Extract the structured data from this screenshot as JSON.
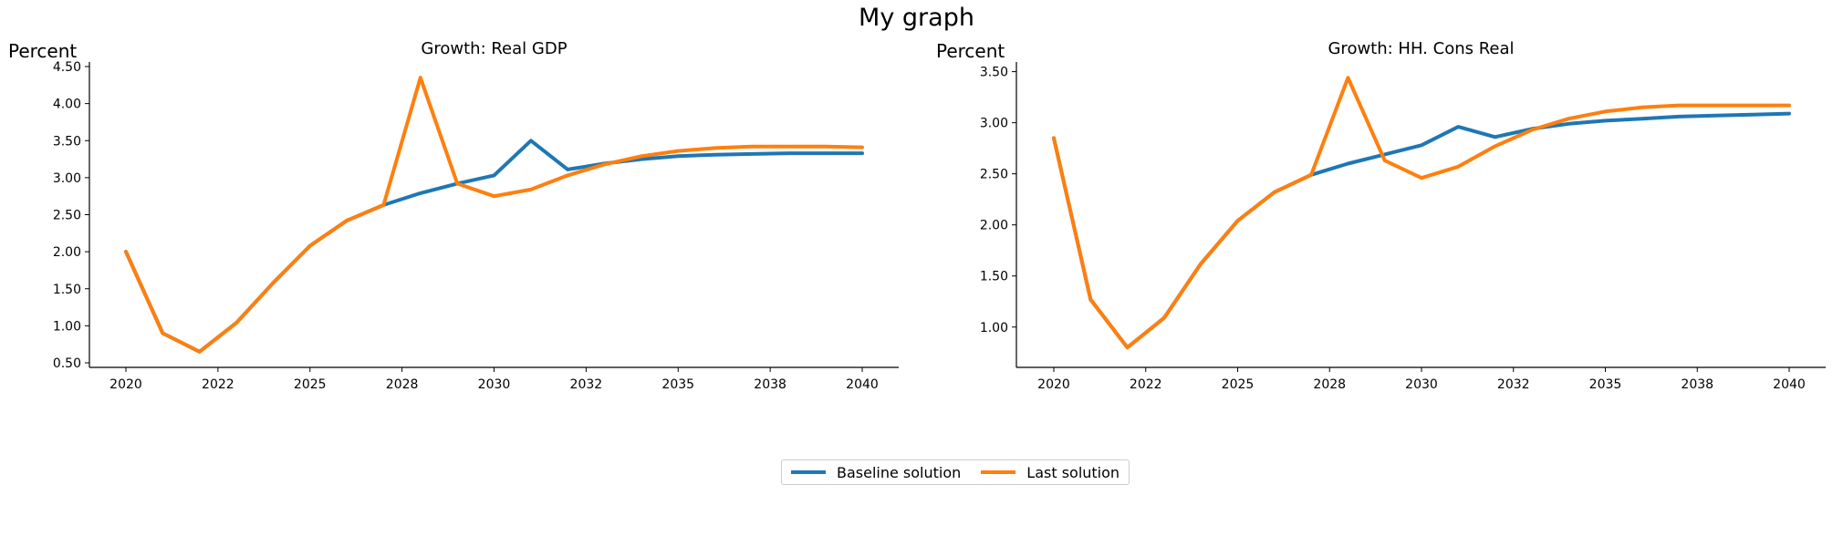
{
  "suptitle": "My graph",
  "colors": {
    "baseline": "#1f77b4",
    "last": "#ff7f0e"
  },
  "legend": [
    {
      "name": "Baseline solution",
      "color": "#1f77b4"
    },
    {
      "name": "Last solution",
      "color": "#ff7f0e"
    }
  ],
  "chart_data": [
    {
      "type": "line",
      "title": "Growth: Real GDP",
      "ylabel": "Percent",
      "xlabel": "",
      "xlim": [
        2020,
        2040
      ],
      "ylim": [
        0.5,
        4.5
      ],
      "yticks": [
        "0.50",
        "1.00",
        "1.50",
        "2.00",
        "2.50",
        "3.00",
        "3.50",
        "4.00",
        "4.50"
      ],
      "xticks": [
        "2020",
        "2022",
        "2025",
        "2028",
        "2030",
        "2032",
        "2035",
        "2038",
        "2040"
      ],
      "x": [
        2020,
        2021,
        2022,
        2023,
        2024,
        2025,
        2026,
        2027,
        2028,
        2029,
        2030,
        2031,
        2032,
        2033,
        2034,
        2035,
        2036,
        2037,
        2038,
        2039,
        2040
      ],
      "series": [
        {
          "name": "Baseline solution",
          "values": [
            2.0,
            0.9,
            0.65,
            1.04,
            1.58,
            2.08,
            2.42,
            2.63,
            2.79,
            2.92,
            3.03,
            3.5,
            3.11,
            3.19,
            3.25,
            3.29,
            3.31,
            3.32,
            3.33,
            3.33,
            3.33
          ]
        },
        {
          "name": "Last solution",
          "values": [
            2.0,
            0.9,
            0.65,
            1.04,
            1.58,
            2.08,
            2.42,
            2.63,
            4.35,
            2.92,
            2.75,
            2.84,
            3.03,
            3.18,
            3.29,
            3.36,
            3.4,
            3.42,
            3.42,
            3.42,
            3.41
          ]
        }
      ],
      "grid": false,
      "legend_position": "bottom-center"
    },
    {
      "type": "line",
      "title": "Growth: HH. Cons Real",
      "ylabel": "Percent",
      "xlabel": "",
      "xlim": [
        2020,
        2040
      ],
      "ylim": [
        0.65,
        3.55
      ],
      "yticks": [
        "1.00",
        "1.50",
        "2.00",
        "2.50",
        "3.00",
        "3.50"
      ],
      "xticks": [
        "2020",
        "2022",
        "2025",
        "2028",
        "2030",
        "2032",
        "2035",
        "2038",
        "2040"
      ],
      "x": [
        2020,
        2021,
        2022,
        2023,
        2024,
        2025,
        2026,
        2027,
        2028,
        2029,
        2030,
        2031,
        2032,
        2033,
        2034,
        2035,
        2036,
        2037,
        2038,
        2039,
        2040
      ],
      "series": [
        {
          "name": "Baseline solution",
          "values": [
            2.85,
            1.27,
            0.8,
            1.09,
            1.62,
            2.04,
            2.32,
            2.49,
            2.6,
            2.69,
            2.78,
            2.96,
            2.86,
            2.94,
            2.99,
            3.02,
            3.04,
            3.06,
            3.07,
            3.08,
            3.09
          ]
        },
        {
          "name": "Last solution",
          "values": [
            2.85,
            1.27,
            0.8,
            1.09,
            1.62,
            2.04,
            2.32,
            2.49,
            3.44,
            2.63,
            2.46,
            2.57,
            2.77,
            2.93,
            3.04,
            3.11,
            3.15,
            3.17,
            3.17,
            3.17,
            3.17
          ]
        }
      ],
      "grid": false,
      "legend_position": "bottom-center"
    }
  ]
}
